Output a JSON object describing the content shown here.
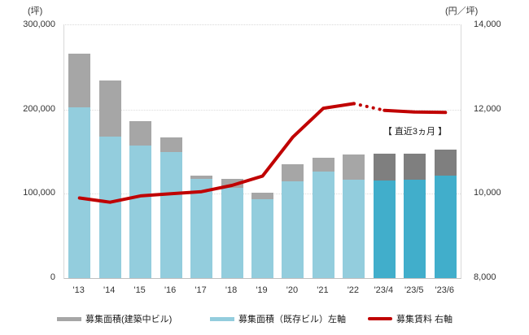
{
  "units": {
    "left": "(坪)",
    "right": "(円／坪)"
  },
  "annotation": "【 直近3ヵ月 】",
  "colors": {
    "bar_existing": "#93cddd",
    "bar_existing_recent": "#41aecb",
    "bar_construction": "#a6a6a6",
    "bar_construction_recent": "#7f7f7f",
    "line": "#c00000",
    "axis_text": "#333333",
    "gridline": "#dcdcdc"
  },
  "legend": [
    {
      "label": "募集面積(建築中ビル)",
      "swatch": "bar_construction"
    },
    {
      "label": "募集面積（既存ビル）左軸",
      "swatch": "bar_existing"
    },
    {
      "label": "募集賃料 右軸",
      "swatch": "line"
    }
  ],
  "chart_data": {
    "type": "combo: stacked bar + line",
    "categories": [
      "'13",
      "'14",
      "'15",
      "'16",
      "'17",
      "'18",
      "'19",
      "'20",
      "'21",
      "'22",
      "'23/4",
      "'23/5",
      "'23/6"
    ],
    "series": [
      {
        "key": "existing",
        "name": "募集面積（既存ビル）左軸",
        "type": "bar",
        "axis": "left",
        "values": [
          203000,
          168000,
          157000,
          150000,
          118000,
          107000,
          94000,
          115000,
          126000,
          117000,
          116000,
          117000,
          122000
        ]
      },
      {
        "key": "under_construction",
        "name": "募集面積(建築中ビル)",
        "type": "bar",
        "axis": "left",
        "values": [
          63000,
          66000,
          29000,
          17000,
          4000,
          11000,
          7000,
          20000,
          17000,
          30000,
          32000,
          31000,
          30000
        ]
      },
      {
        "key": "rent",
        "name": "募集賃料 右軸",
        "type": "line",
        "axis": "right",
        "values": [
          9900,
          9800,
          9950,
          10000,
          10050,
          10200,
          10420,
          11350,
          12030,
          12140,
          11980,
          11940,
          11930
        ]
      }
    ],
    "left_axis": {
      "unit": "(坪)",
      "min": 0,
      "max": 300000,
      "ticks": [
        "300,000",
        "200,000",
        "100,000",
        "0"
      ]
    },
    "right_axis": {
      "unit": "(円／坪)",
      "min": 8000,
      "max": 14000,
      "ticks": [
        "14,000",
        "12,000",
        "10,000",
        "8,000"
      ]
    },
    "highlight_last_n": 3,
    "line_dotted_between": [
      "'22",
      "'23/4"
    ],
    "grid": "horizontal dotted",
    "legend_position": "bottom"
  }
}
